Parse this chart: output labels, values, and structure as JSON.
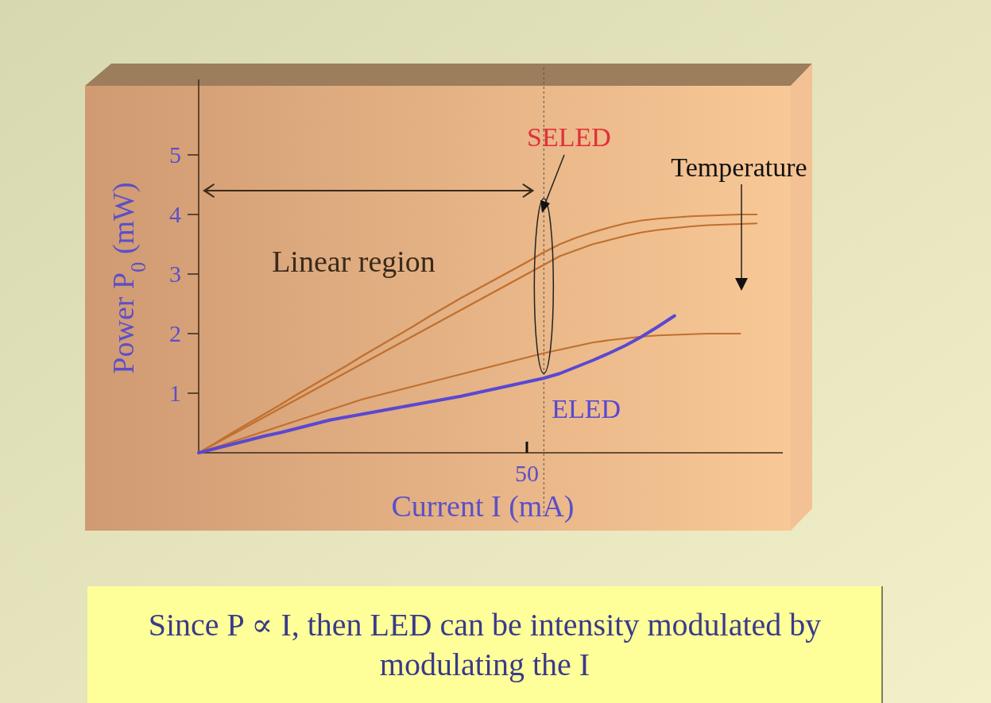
{
  "chart_data": {
    "type": "line",
    "xlabel": "Current I (mA)",
    "ylabel": "Power P$_{0}$ (mW)",
    "categories": [
      null,
      null,
      null,
      null,
      null,
      null,
      null,
      null,
      null,
      null,
      null,
      null,
      null,
      null,
      null,
      null,
      null,
      null,
      null,
      null,
      null,
      null,
      null,
      null,
      null,
      null,
      null,
      null,
      null,
      null,
      null,
      null,
      null,
      null,
      null
    ],
    "ylim": [
      0,
      6.2
    ],
    "yticks": [
      1,
      2,
      3,
      4,
      5
    ],
    "series": [
      {
        "color": "#c0702e",
        "values": [
          0,
          0.16,
          0.33,
          0.49,
          0.65,
          0.81,
          0.98,
          1.14,
          1.3,
          1.46,
          1.63,
          1.79,
          1.95,
          2.11,
          2.28,
          2.44,
          2.6,
          2.75,
          2.9,
          3.05,
          3.2,
          3.36,
          3.5,
          3.61,
          3.7,
          3.78,
          3.85,
          3.9,
          3.93,
          3.95,
          3.97,
          3.98,
          3.99,
          4.0,
          4.0
        ]
      },
      {
        "color": "#c0702e",
        "values": [
          0,
          0.15,
          0.3,
          0.45,
          0.6,
          0.75,
          0.9,
          1.05,
          1.2,
          1.35,
          1.5,
          1.65,
          1.8,
          1.95,
          2.1,
          2.25,
          2.4,
          2.55,
          2.7,
          2.85,
          3.0,
          3.15,
          3.3,
          3.4,
          3.5,
          3.57,
          3.64,
          3.7,
          3.74,
          3.77,
          3.8,
          3.82,
          3.83,
          3.84,
          3.85
        ]
      },
      {
        "color": "#c0702e",
        "values": [
          0,
          0.09,
          0.18,
          0.27,
          0.36,
          0.45,
          0.54,
          0.63,
          0.72,
          0.81,
          0.9,
          0.97,
          1.04,
          1.11,
          1.18,
          1.25,
          1.32,
          1.39,
          1.46,
          1.53,
          1.6,
          1.67,
          1.73,
          1.79,
          1.85,
          1.89,
          1.92,
          1.95,
          1.97,
          1.98,
          1.99,
          2.0,
          2.0,
          2.0,
          null
        ]
      },
      {
        "name": "ELED",
        "color": "#5a48d0",
        "values": [
          0,
          0.07,
          0.14,
          0.21,
          0.28,
          0.34,
          0.41,
          0.48,
          0.55,
          0.6,
          0.65,
          0.7,
          0.75,
          0.8,
          0.85,
          0.9,
          0.95,
          1.01,
          1.07,
          1.13,
          1.19,
          1.25,
          1.33,
          1.44,
          1.55,
          1.67,
          1.8,
          1.95,
          2.12,
          2.3,
          null,
          null,
          null,
          null,
          null
        ]
      }
    ],
    "annotations": [
      "50",
      "SELED",
      "Linear region",
      "Temperature",
      "Since P ∝ I, then LED can be intensity modulated by modulating the I"
    ]
  }
}
